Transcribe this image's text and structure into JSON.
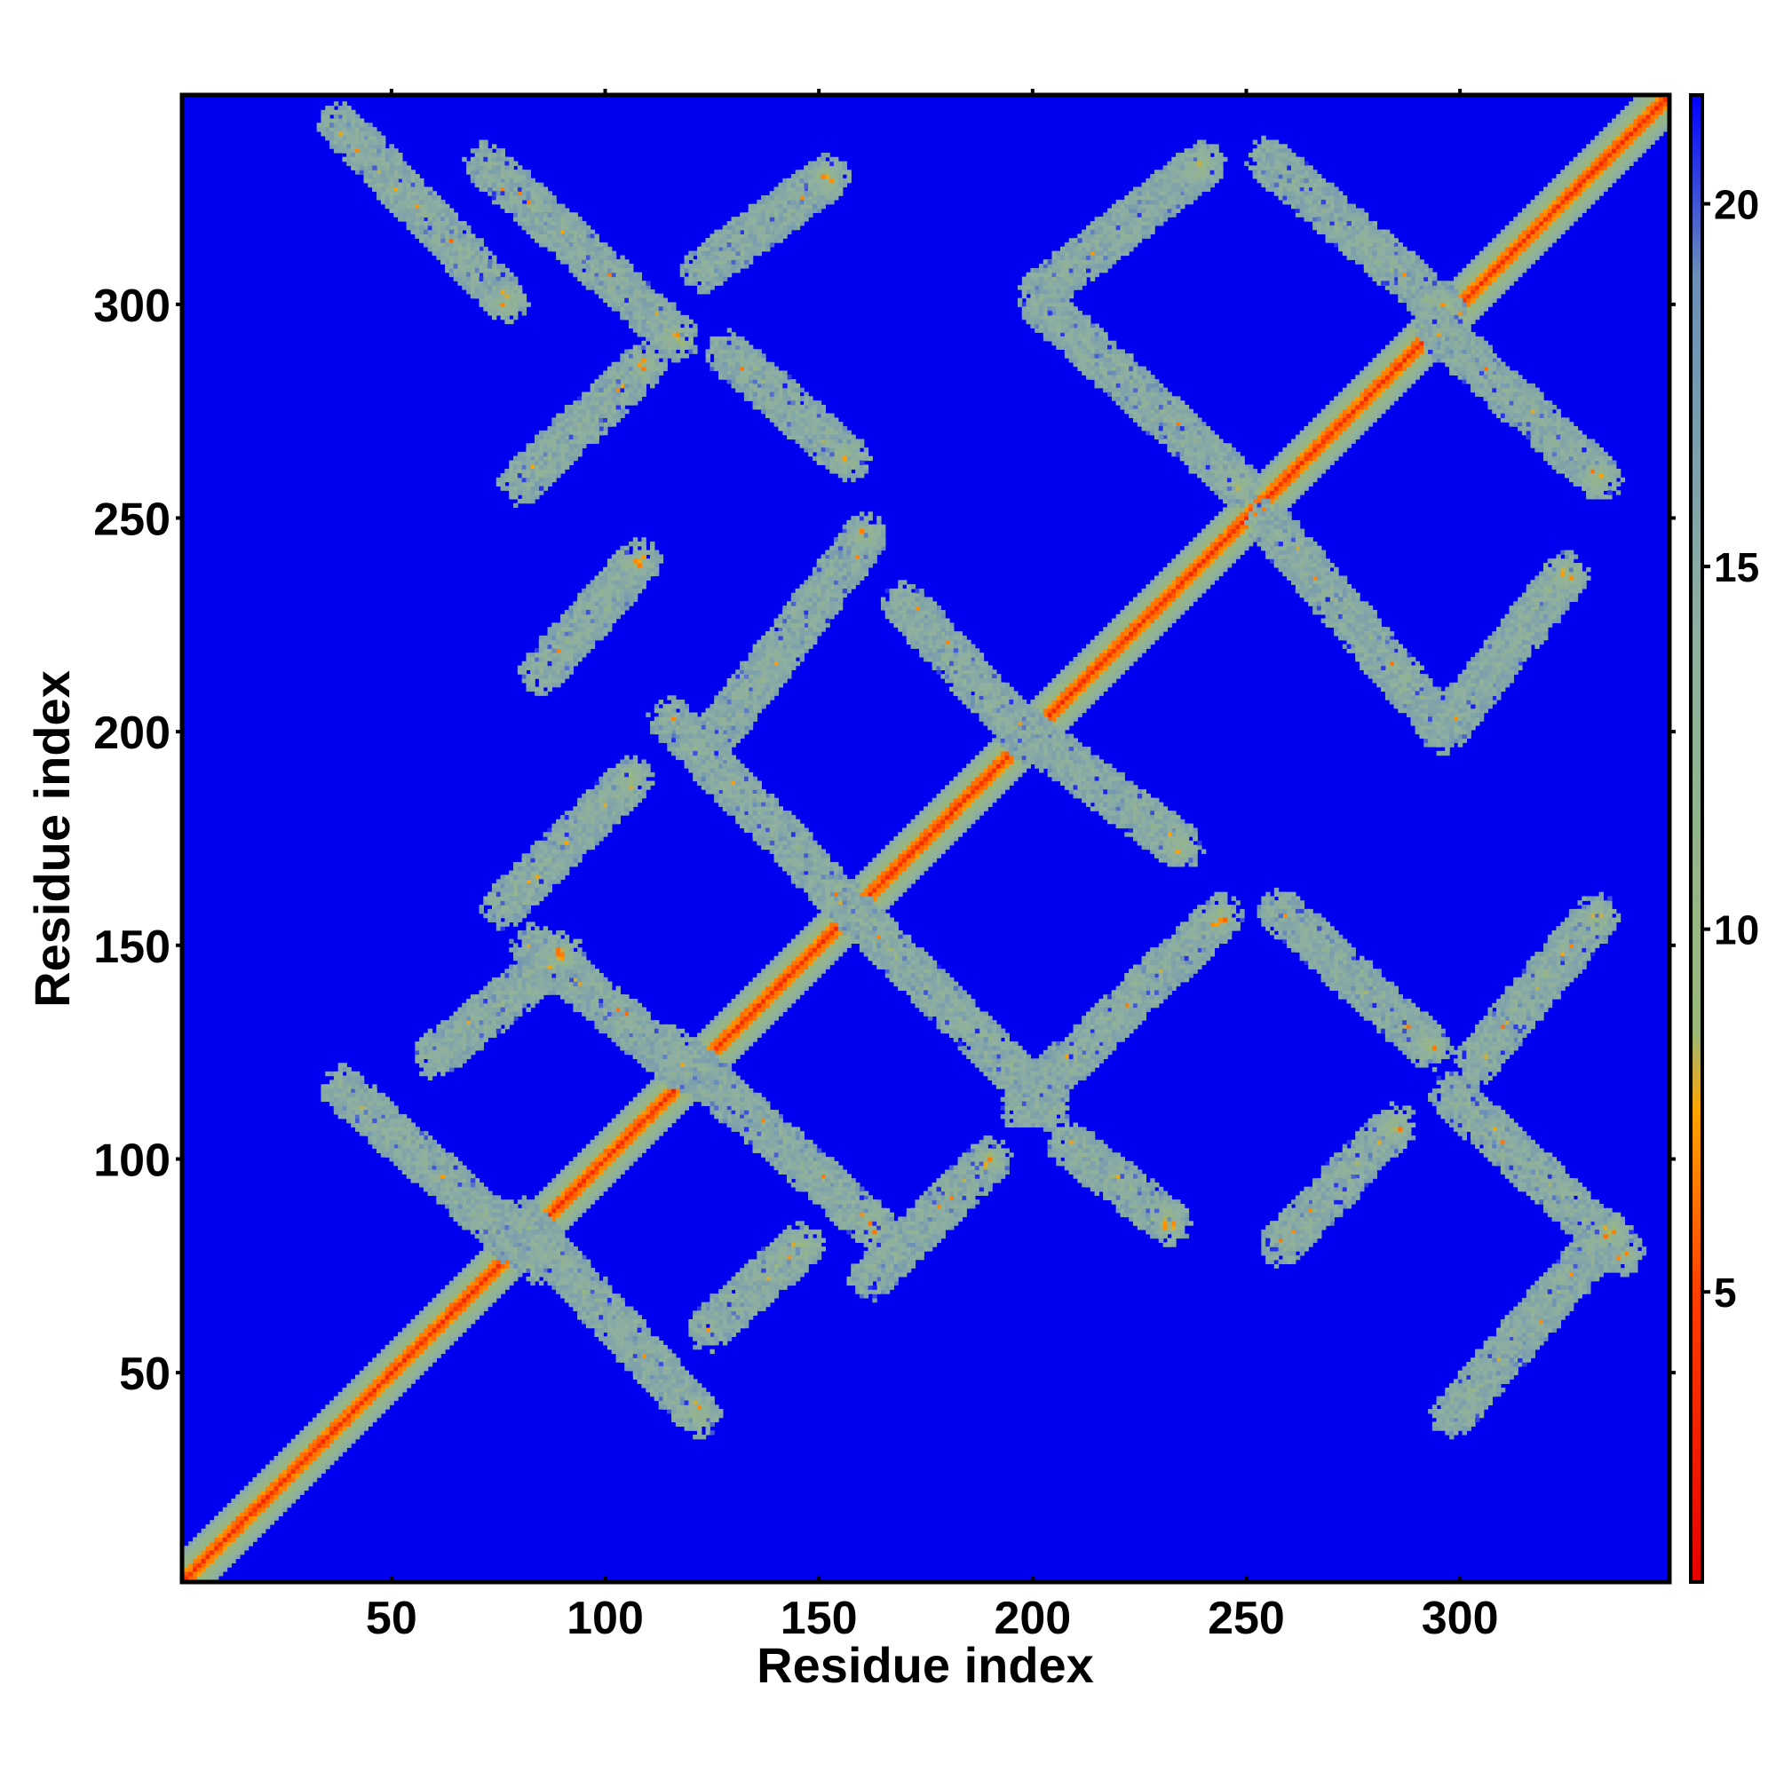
{
  "chart_data": {
    "type": "heatmap",
    "title": "",
    "xlabel": "Residue index",
    "ylabel": "Residue index",
    "xlim": [
      1,
      349
    ],
    "ylim": [
      1,
      349
    ],
    "x_ticks": [
      50,
      100,
      150,
      200,
      250,
      300
    ],
    "y_ticks": [
      50,
      100,
      150,
      200,
      250,
      300
    ],
    "colorbar": {
      "range": [
        1,
        21.5
      ],
      "ticks": [
        5,
        10,
        15,
        20
      ],
      "colors": [
        {
          "value": 1,
          "color": "#e60000"
        },
        {
          "value": 5,
          "color": "#ff4000"
        },
        {
          "value": 7.5,
          "color": "#ffa500"
        },
        {
          "value": 8.6,
          "color": "#9ab87a"
        },
        {
          "value": 14,
          "color": "#8fb0a0"
        },
        {
          "value": 19,
          "color": "#6a8fb8"
        },
        {
          "value": 21.5,
          "color": "#0000ff"
        }
      ],
      "background_color": "#0000f0"
    },
    "diagonal_band": {
      "x_range": [
        1,
        349
      ],
      "core_value": 3.8,
      "half_width_residues": 7
    },
    "features": [
      {
        "kind": "anti",
        "x": [
          38,
          77
        ],
        "y": [
          301,
          342
        ]
      },
      {
        "kind": "anti",
        "x": [
          72,
          117
        ],
        "y": [
          292,
          333
        ]
      },
      {
        "kind": "par",
        "x": [
          123,
          152
        ],
        "y": [
          308,
          330
        ]
      },
      {
        "kind": "anti",
        "x": [
          128,
          157
        ],
        "y": [
          264,
          289
        ]
      },
      {
        "kind": "par",
        "x": [
          80,
          109
        ],
        "y": [
          258,
          286
        ]
      },
      {
        "kind": "par",
        "x": [
          202,
          240
        ],
        "y": [
          303,
          333
        ]
      },
      {
        "kind": "anti",
        "x": [
          202,
          248
        ],
        "y": [
          258,
          300
        ]
      },
      {
        "kind": "anti",
        "x": [
          255,
          296
        ],
        "y": [
          299,
          334
        ]
      },
      {
        "kind": "anti",
        "x": [
          295,
          333
        ],
        "y": [
          259,
          294
        ]
      },
      {
        "kind": "anti",
        "x": [
          255,
          296
        ],
        "y": [
          201,
          249
        ]
      },
      {
        "kind": "par",
        "x": [
          296,
          325
        ],
        "y": [
          200,
          237
        ]
      },
      {
        "kind": "par",
        "x": [
          125,
          161
        ],
        "y": [
          198,
          246
        ]
      },
      {
        "kind": "par",
        "x": [
          85,
          108
        ],
        "y": [
          214,
          240
        ]
      },
      {
        "kind": "anti",
        "x": [
          170,
          200
        ],
        "y": [
          197,
          230
        ]
      },
      {
        "kind": "anti",
        "x": [
          115,
          155
        ],
        "y": [
          161,
          203
        ]
      },
      {
        "kind": "par",
        "x": [
          76,
          106
        ],
        "y": [
          159,
          189
        ]
      },
      {
        "kind": "anti",
        "x": [
          196,
          235
        ],
        "y": [
          173,
          202
        ]
      },
      {
        "kind": "anti",
        "x": [
          83,
          118
        ],
        "y": [
          121,
          150
        ]
      },
      {
        "kind": "par",
        "x": [
          60,
          90
        ],
        "y": [
          124,
          148
        ]
      },
      {
        "kind": "anti",
        "x": [
          158,
          204
        ],
        "y": [
          112,
          158
        ]
      },
      {
        "kind": "par",
        "x": [
          197,
          244
        ],
        "y": [
          112,
          157
        ]
      },
      {
        "kind": "anti",
        "x": [
          258,
          293
        ],
        "y": [
          126,
          158
        ]
      },
      {
        "kind": "par",
        "x": [
          303,
          332
        ],
        "y": [
          122,
          157
        ]
      },
      {
        "kind": "anti",
        "x": [
          38,
          84
        ],
        "y": [
          76,
          117
        ]
      },
      {
        "kind": "anti",
        "x": [
          116,
          163
        ],
        "y": [
          84,
          126
        ]
      },
      {
        "kind": "par",
        "x": [
          162,
          190
        ],
        "y": [
          72,
          100
        ]
      },
      {
        "kind": "anti",
        "x": [
          80,
          122
        ],
        "y": [
          40,
          86
        ]
      },
      {
        "kind": "par",
        "x": [
          124,
          146
        ],
        "y": [
          60,
          80
        ]
      },
      {
        "kind": "par",
        "x": [
          258,
          285
        ],
        "y": [
          80,
          108
        ]
      },
      {
        "kind": "anti",
        "x": [
          298,
          338
        ],
        "y": [
          78,
          115
        ]
      },
      {
        "kind": "par",
        "x": [
          298,
          335
        ],
        "y": [
          40,
          83
        ]
      },
      {
        "kind": "anti",
        "x": [
          208,
          232
        ],
        "y": [
          85,
          104
        ]
      }
    ]
  }
}
